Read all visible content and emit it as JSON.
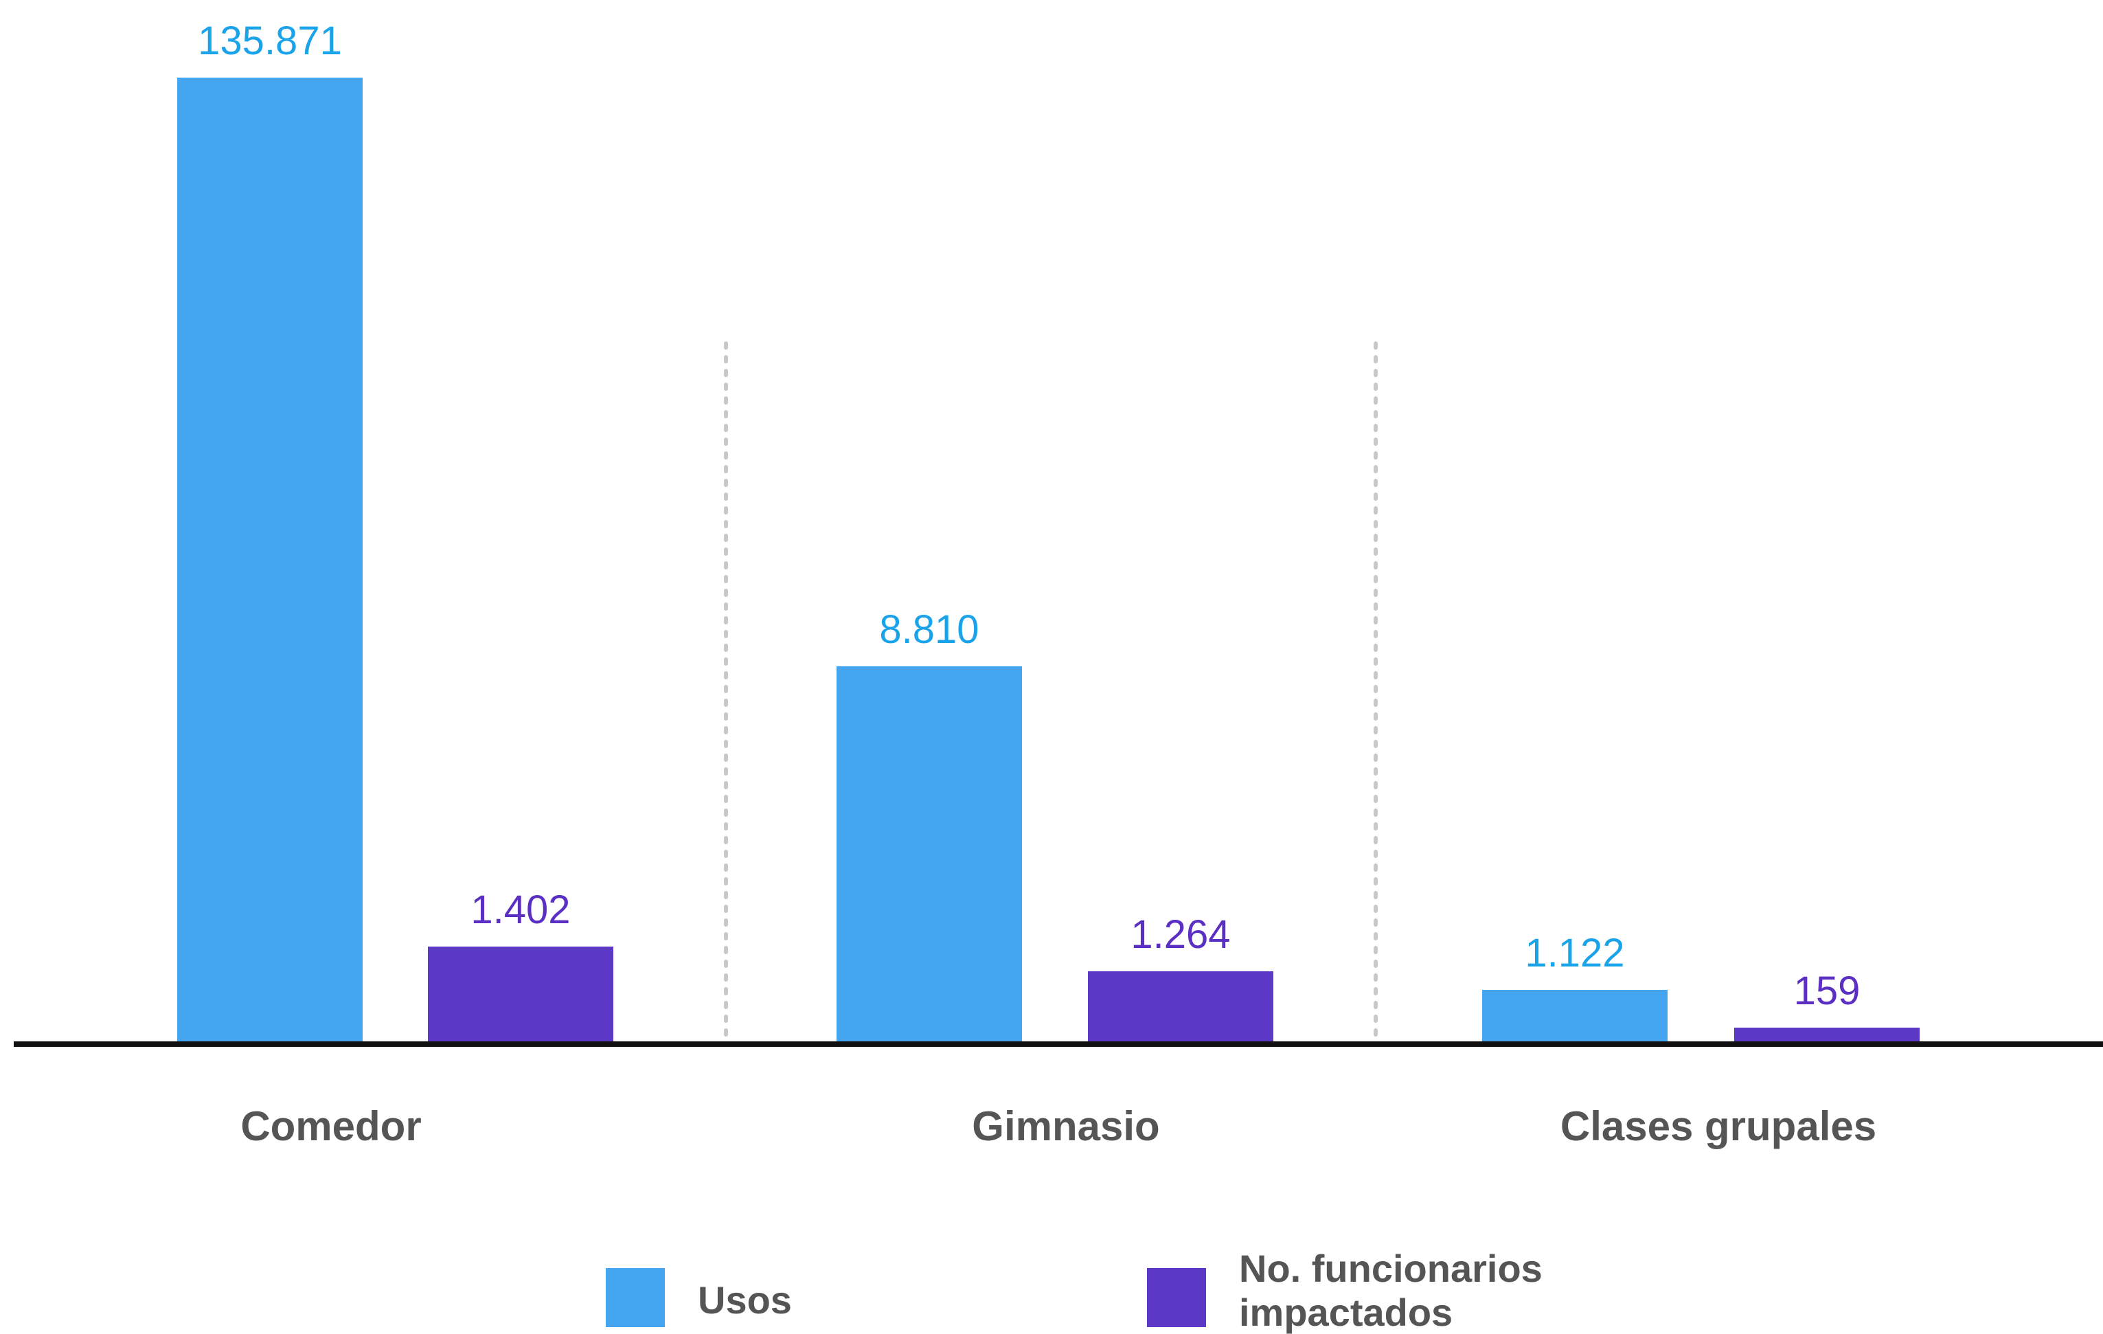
{
  "chart_data": {
    "type": "bar",
    "categories": [
      "Comedor",
      "Gimnasio",
      "Clases grupales"
    ],
    "series": [
      {
        "name": "Usos",
        "color": "#44A6F0",
        "label_color": "#1AA3E8",
        "values": [
          135871,
          8810,
          1122
        ],
        "value_labels": [
          "135.871",
          "8.810",
          "1.122"
        ]
      },
      {
        "name": "No. funcionarios impactados",
        "color": "#5C38C6",
        "label_color": "#5B2FC2",
        "values": [
          1402,
          1264,
          159
        ],
        "value_labels": [
          "1.402",
          "1.264",
          "159"
        ]
      }
    ],
    "legend": {
      "position": "bottom",
      "items": [
        {
          "lines": [
            "Usos"
          ],
          "color": "#44A6F0"
        },
        {
          "lines": [
            "No. funcionarios",
            "impactados"
          ],
          "color": "#5C38C6"
        }
      ]
    },
    "axis_break": true,
    "grid": false,
    "title": "",
    "xlabel": "",
    "ylabel": ""
  }
}
